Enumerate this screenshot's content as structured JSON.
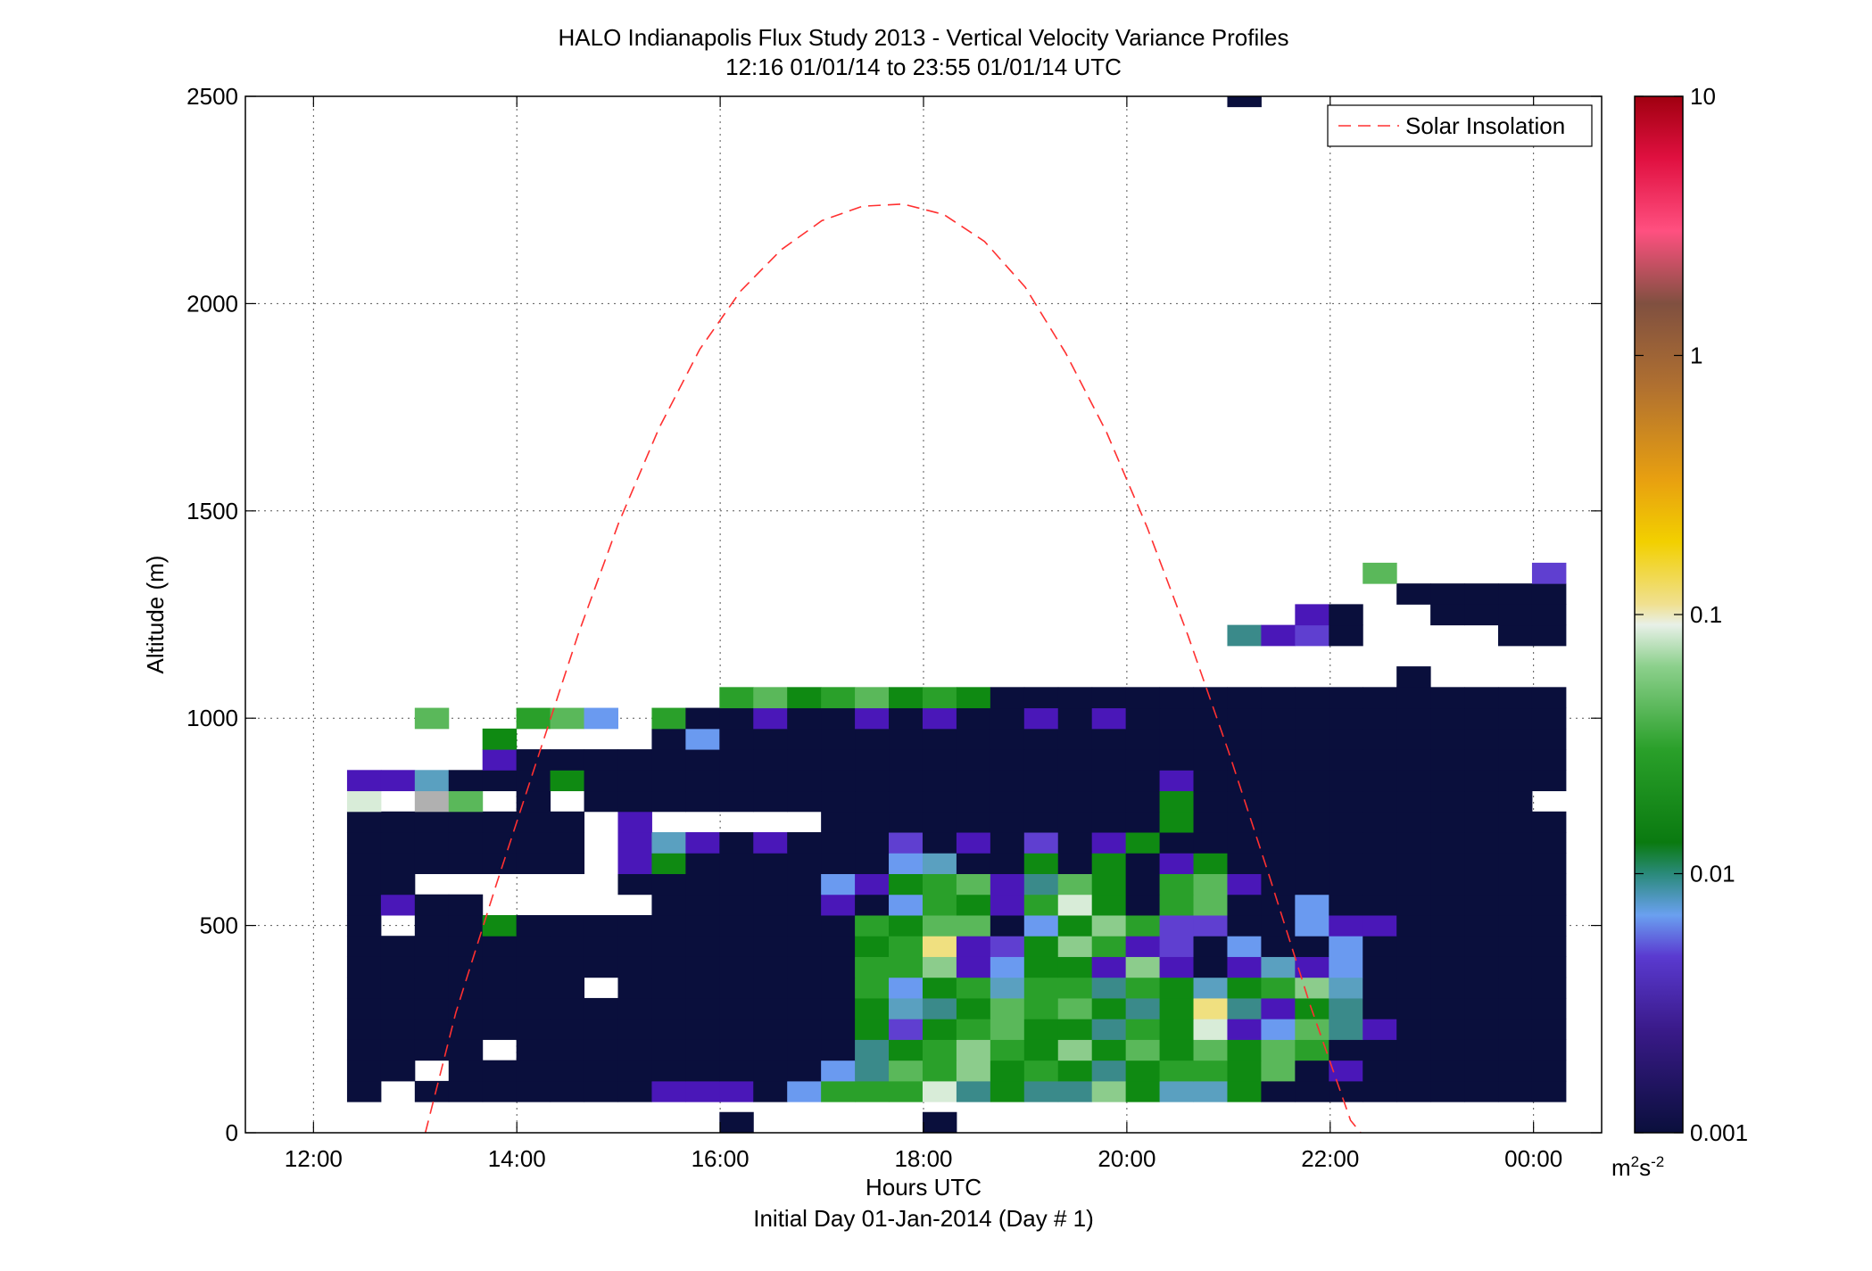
{
  "chart_data": {
    "type": "heatmap",
    "title": "HALO Indianapolis Flux Study 2013 - Vertical Velocity Variance Profiles",
    "subtitle": "12:16 01/01/14 to 23:55 01/01/14  UTC",
    "xlabel": "Hours UTC",
    "xlabel2": "Initial Day 01-Jan-2014 (Day # 1)",
    "ylabel": "Altitude (m)",
    "x_ticks": [
      "12:00",
      "14:00",
      "16:00",
      "18:00",
      "20:00",
      "22:00",
      "00:00"
    ],
    "x_tick_values": [
      12,
      14,
      16,
      18,
      20,
      22,
      24
    ],
    "xlim": [
      11.33,
      24.67
    ],
    "y_ticks": [
      "0",
      "500",
      "1000",
      "1500",
      "2000",
      "2500"
    ],
    "y_tick_values": [
      0,
      500,
      1000,
      1500,
      2000,
      2500
    ],
    "ylim": [
      0,
      2500
    ],
    "grid": "dotted",
    "legend": {
      "entries": [
        "Solar Insolation"
      ],
      "placement": "top-right"
    },
    "colorbar": {
      "scale": "log",
      "range": [
        0.001,
        10
      ],
      "ticks": [
        "0.001",
        "0.01",
        "0.1",
        "1",
        "10"
      ],
      "tick_values": [
        0.001,
        0.01,
        0.1,
        1,
        10
      ],
      "unit_base": "m",
      "unit_sup1": "2",
      "unit_mid": "s",
      "unit_sup2": "-2"
    },
    "cell_size": {
      "hours": 0.333,
      "meters": 50
    },
    "row_start_altitude": 75,
    "row_bottoms": [
      0,
      75,
      125,
      175,
      225,
      275,
      325,
      375,
      425,
      475,
      525,
      575,
      625,
      675,
      725,
      775,
      825,
      875,
      925,
      975,
      1025,
      1075,
      1125,
      1175,
      1225,
      1275,
      1325,
      1375,
      2475
    ],
    "column_starts": [
      12.33,
      12.67,
      13.0,
      13.33,
      13.67,
      14.0,
      14.33,
      14.67,
      15.0,
      15.33,
      15.67,
      16.0,
      16.33,
      16.67,
      17.0,
      17.33,
      17.67,
      18.0,
      18.33,
      18.67,
      19.0,
      19.33,
      19.67,
      20.0,
      20.33,
      20.67,
      21.0,
      21.33,
      21.67,
      22.0,
      22.33,
      22.67,
      23.0,
      23.33,
      23.67
    ],
    "palette": {
      "N": "#0a0f3c",
      "P": "#4a17b8",
      "V": "#5f3fd0",
      "L": "#6a9af0",
      "T": "#3a8a8a",
      "C": "#5aa0c0",
      "g": "#0f8a12",
      "G": "#2aa02a",
      "m": "#5ab85a",
      "l": "#8ccc8c",
      "p": "#d8ecd8",
      "y": "#f0e080",
      "s": "#b0b0b0"
    },
    "rows": [
      "...........N.....N..................",
      "N.NNNNNNNPPPNLGGGpTgTTlgCCgNNNNNNNNNNLLPT",
      "NN.NNNNNNNNNNNLTmGlgGgTgGGgmNPNNNNNNNNNNPP",
      "NNNN.NNNNNNNNNNTgGlGglgmgmgmGNNNNNNNNNNNNN",
      "NNNNNNNNNNNNNNNgVgGmggTGgpPLmTPNNNNNNNNNNN",
      "NNNNNNNNNNNNNNNgCTgmGmgTgyTPgTNNNNNNNNNNNN",
      "NNNNNNN.NNNNNNNGLgGCGGTGgCgGlCNNNNNNNNNNNN",
      "NNNNNNNNNNNNNNNGGlPLggPlPNPCPLNNNNNNNNNNNN",
      "NNNNNNNNNNNNNNNgGyPVglGPVNLNNLNNNNNNNNNNNNN",
      "N.NNgNNNNNNNNNNGgmmNLglGVVNNLPPNNNNNNNNNNNNL",
      "NPNN.....NNNNNPNLGgPGpgNGmNNLNNNNNNNNNNNNNNG",
      "NN......NNNNNNLPgGmPTmgNGmPNNNNNNNNNNNNNNNNNm",
      "NNNNNNN.PgNNNNNNLCNNgNgNPgNNNNNNNNNNNNNNNNPgP",
      "NNNNNNN.PCPNPNNNVNPNVNPgNNNNNNNNNNNNNNNNNNNPg",
      "NNNNNNN.P.....NNNNNNNNNNgNNNNNNNNNNNNNNNNNNNPLm",
      "p.sm.N.NNNNNNNNNNNNNNNNNgNNNNNNNNNN.NNNNNNNTm",
      "PPCNNNgNNNNNNNNNNNNNNNNNPNNNNNNNNNNNNNNNNNNgg",
      "....PNNNNNNNNNNNNNNNNNNNNNNNNNNNNNNNNNNNNNNNlg",
      "....g....NLNNNNNNNNNNNNNNNNNNNNNNNNNNNNNNNNNCl",
      "..m..GmL.GNNPNNPNPNNPNPNNNNNNNNNNNNNNNNNNNNNNp",
      "...........GmgGmgGgNNNNNNNNNNNNNNNNNNNNNNNNNNm",
      "...............................N..........NNg",
      ".......................................N.NNL",
      "..........................TPVN....NNNNNNNNNN",
      "............................PN..NNNNNNNNNNNPN",
      "...............................NNNNNNNNNNNNT",
      "..............................m....VNNgNNNN",
      "...............................................p",
      "..........................N"
    ],
    "solar_insolation": [
      [
        13.1,
        0
      ],
      [
        13.4,
        290
      ],
      [
        13.8,
        600
      ],
      [
        14.2,
        900
      ],
      [
        14.6,
        1200
      ],
      [
        15.0,
        1470
      ],
      [
        15.4,
        1700
      ],
      [
        15.8,
        1890
      ],
      [
        16.2,
        2030
      ],
      [
        16.6,
        2130
      ],
      [
        17.0,
        2200
      ],
      [
        17.4,
        2235
      ],
      [
        17.8,
        2240
      ],
      [
        18.2,
        2215
      ],
      [
        18.6,
        2150
      ],
      [
        19.0,
        2040
      ],
      [
        19.4,
        1880
      ],
      [
        19.8,
        1690
      ],
      [
        20.2,
        1460
      ],
      [
        20.6,
        1200
      ],
      [
        21.0,
        920
      ],
      [
        21.4,
        620
      ],
      [
        21.8,
        310
      ],
      [
        22.2,
        30
      ],
      [
        22.3,
        0
      ]
    ]
  }
}
